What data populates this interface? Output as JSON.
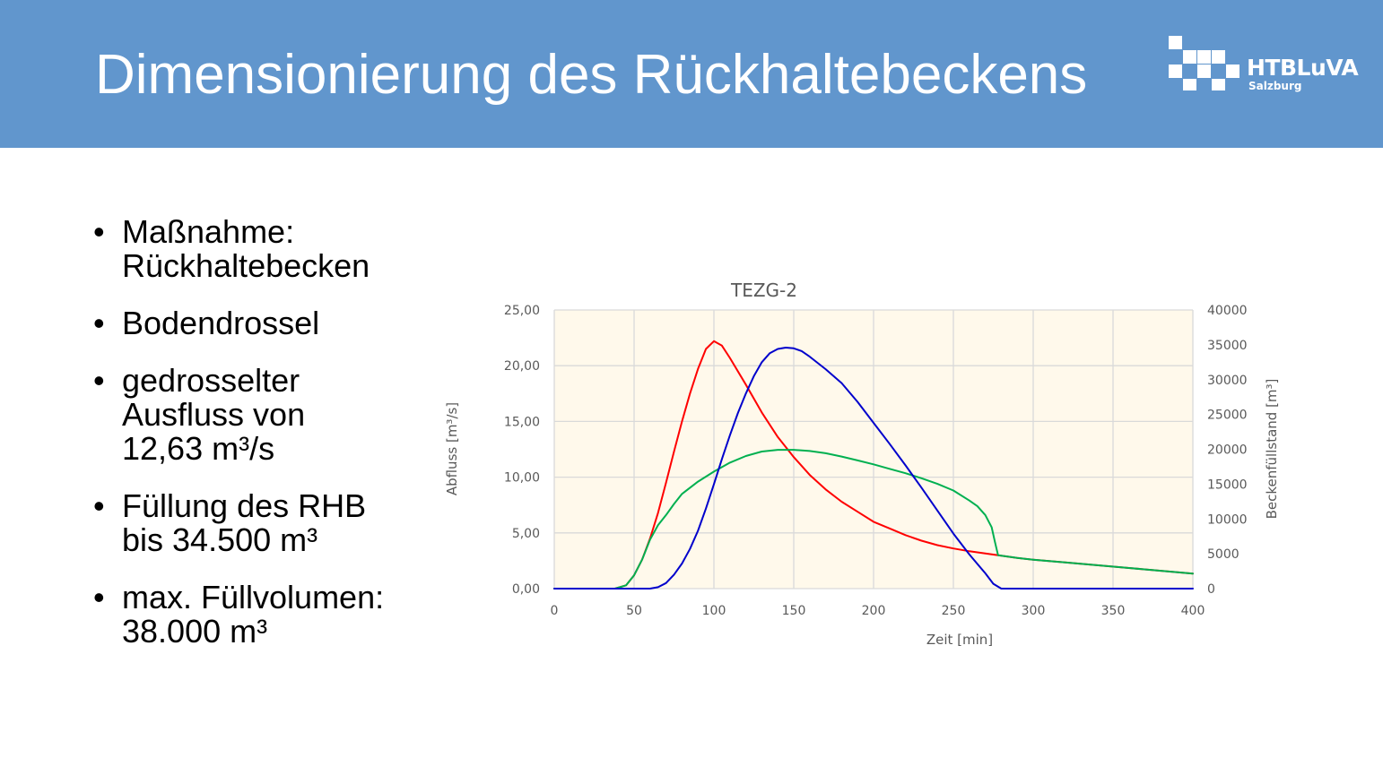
{
  "slide": {
    "title": "Dimensionierung des Rückhaltebeckens",
    "logo": {
      "name": "HTBLuVA",
      "subtitle": "Salzburg"
    },
    "bullet_symbol": "•",
    "bullets": [
      {
        "lines": [
          "Maßnahme:",
          "Rückhaltebecken"
        ]
      },
      {
        "lines": [
          "Bodendrossel"
        ]
      },
      {
        "lines": [
          "gedrosselter",
          "Ausfluss von",
          "12,63 m³/s"
        ]
      },
      {
        "lines": [
          "Füllung des RHB",
          "bis 34.500 m³"
        ]
      },
      {
        "lines": [
          "max. Füllvolumen:",
          "38.000 m³"
        ]
      }
    ]
  },
  "chart_data": {
    "type": "line",
    "title": "TEZG-2",
    "xlabel": "Zeit  [min]",
    "ylabel": "Abfluss  [m³/s]",
    "y2label": "Beckenfüllstand  [m³]",
    "xlim": [
      0,
      400
    ],
    "ylim": [
      0,
      25
    ],
    "y2lim": [
      0,
      40000
    ],
    "x_ticks": [
      "0",
      "50",
      "100",
      "150",
      "200",
      "250",
      "300",
      "350",
      "400"
    ],
    "y_ticks": [
      "0,00",
      "5,00",
      "10,00",
      "15,00",
      "20,00",
      "25,00"
    ],
    "y2_ticks": [
      "0",
      "5000",
      "10000",
      "15000",
      "20000",
      "25000",
      "30000",
      "35000",
      "40000"
    ],
    "grid": true,
    "plot_background": "#fff9eb",
    "series": [
      {
        "color": "#ff0000",
        "axis": "left",
        "points": [
          [
            0,
            0
          ],
          [
            38,
            0
          ],
          [
            45,
            0.3
          ],
          [
            50,
            1.2
          ],
          [
            55,
            2.6
          ],
          [
            60,
            4.5
          ],
          [
            65,
            6.8
          ],
          [
            70,
            9.5
          ],
          [
            75,
            12.3
          ],
          [
            80,
            15.0
          ],
          [
            85,
            17.5
          ],
          [
            90,
            19.7
          ],
          [
            95,
            21.5
          ],
          [
            100,
            22.2
          ],
          [
            105,
            21.8
          ],
          [
            110,
            20.7
          ],
          [
            120,
            18.3
          ],
          [
            130,
            15.8
          ],
          [
            140,
            13.6
          ],
          [
            150,
            11.8
          ],
          [
            160,
            10.2
          ],
          [
            170,
            8.9
          ],
          [
            180,
            7.8
          ],
          [
            190,
            6.9
          ],
          [
            200,
            6.0
          ],
          [
            210,
            5.4
          ],
          [
            220,
            4.8
          ],
          [
            230,
            4.3
          ],
          [
            240,
            3.9
          ],
          [
            250,
            3.6
          ],
          [
            260,
            3.35
          ],
          [
            270,
            3.15
          ],
          [
            278,
            3.0
          ],
          [
            290,
            2.75
          ],
          [
            300,
            2.6
          ],
          [
            320,
            2.35
          ],
          [
            340,
            2.1
          ],
          [
            360,
            1.85
          ],
          [
            380,
            1.6
          ],
          [
            400,
            1.35
          ]
        ]
      },
      {
        "color": "#00b050",
        "axis": "left",
        "points": [
          [
            0,
            0
          ],
          [
            38,
            0
          ],
          [
            45,
            0.3
          ],
          [
            50,
            1.2
          ],
          [
            55,
            2.6
          ],
          [
            60,
            4.4
          ],
          [
            65,
            5.7
          ],
          [
            70,
            6.6
          ],
          [
            75,
            7.6
          ],
          [
            80,
            8.5
          ],
          [
            90,
            9.6
          ],
          [
            100,
            10.5
          ],
          [
            110,
            11.3
          ],
          [
            120,
            11.9
          ],
          [
            130,
            12.3
          ],
          [
            140,
            12.45
          ],
          [
            150,
            12.45
          ],
          [
            160,
            12.35
          ],
          [
            170,
            12.15
          ],
          [
            180,
            11.85
          ],
          [
            190,
            11.5
          ],
          [
            200,
            11.15
          ],
          [
            210,
            10.75
          ],
          [
            220,
            10.35
          ],
          [
            230,
            9.9
          ],
          [
            240,
            9.4
          ],
          [
            250,
            8.8
          ],
          [
            260,
            7.9
          ],
          [
            265,
            7.4
          ],
          [
            270,
            6.6
          ],
          [
            274,
            5.5
          ],
          [
            276,
            4.2
          ],
          [
            278,
            3.0
          ],
          [
            290,
            2.75
          ],
          [
            300,
            2.6
          ],
          [
            320,
            2.35
          ],
          [
            340,
            2.1
          ],
          [
            360,
            1.85
          ],
          [
            380,
            1.6
          ],
          [
            400,
            1.35
          ]
        ]
      },
      {
        "color": "#0000cc",
        "axis": "right",
        "points": [
          [
            0,
            0
          ],
          [
            60,
            0
          ],
          [
            65,
            200
          ],
          [
            70,
            800
          ],
          [
            75,
            2000
          ],
          [
            80,
            3600
          ],
          [
            85,
            5700
          ],
          [
            90,
            8300
          ],
          [
            95,
            11500
          ],
          [
            100,
            15000
          ],
          [
            105,
            18600
          ],
          [
            110,
            22000
          ],
          [
            115,
            25200
          ],
          [
            120,
            28000
          ],
          [
            125,
            30500
          ],
          [
            130,
            32500
          ],
          [
            135,
            33800
          ],
          [
            140,
            34400
          ],
          [
            145,
            34600
          ],
          [
            150,
            34500
          ],
          [
            155,
            34100
          ],
          [
            160,
            33300
          ],
          [
            170,
            31500
          ],
          [
            180,
            29500
          ],
          [
            190,
            26800
          ],
          [
            200,
            23800
          ],
          [
            210,
            20800
          ],
          [
            220,
            17700
          ],
          [
            230,
            14500
          ],
          [
            240,
            11200
          ],
          [
            250,
            7900
          ],
          [
            260,
            4900
          ],
          [
            270,
            2200
          ],
          [
            275,
            700
          ],
          [
            280,
            0
          ],
          [
            400,
            0
          ]
        ]
      }
    ]
  }
}
